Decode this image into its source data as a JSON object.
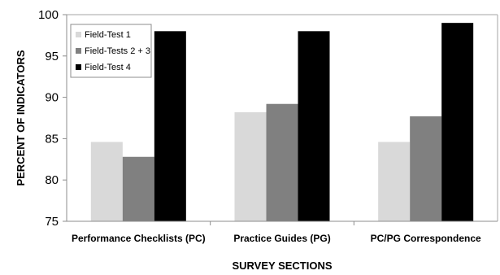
{
  "chart_data": {
    "type": "bar",
    "categories": [
      "Performance Checklists (PC)",
      "Practice Guides (PG)",
      "PC/PG Correspondence"
    ],
    "series": [
      {
        "name": "Field-Test 1",
        "values": [
          84.6,
          88.2,
          84.6
        ],
        "color": "#d9d9d9"
      },
      {
        "name": "Field-Tests 2 + 3",
        "values": [
          82.8,
          89.2,
          87.7
        ],
        "color": "#808080"
      },
      {
        "name": "Field-Test 4",
        "values": [
          98,
          98,
          99
        ],
        "color": "#000000"
      }
    ],
    "xlabel": "SURVEY SECTIONS",
    "ylabel": "PERCENT OF INDICATORS",
    "ylim": [
      75,
      100
    ],
    "yticks": [
      75,
      80,
      85,
      90,
      95,
      100
    ],
    "grid": false,
    "legend_position": "top-left"
  }
}
